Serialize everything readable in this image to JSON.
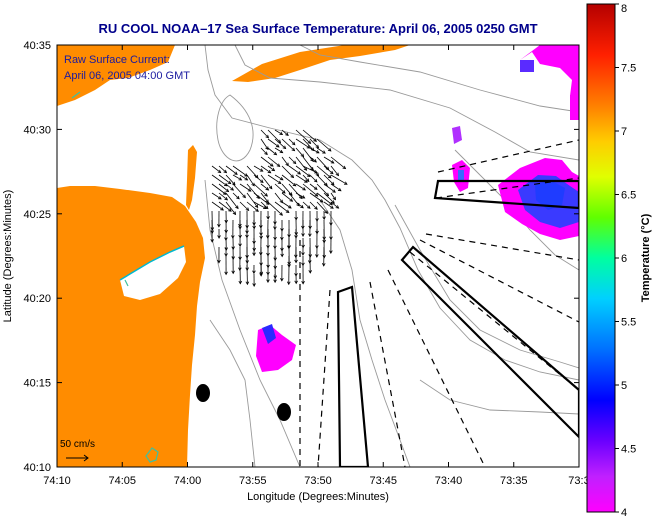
{
  "title": "RU COOL  NOAA–17  Sea Surface Temperature:  April 06, 2005 0250 GMT",
  "overlay": {
    "line1": "Raw Surface Current:",
    "line2": "April 06, 2005 04:00 GMT"
  },
  "x_axis": {
    "label": "Longitude (Degrees:Minutes)",
    "ticks": [
      "74:10",
      "74:05",
      "74:00",
      "73:55",
      "73:50",
      "73:45",
      "73:40",
      "73:35",
      "73:3"
    ]
  },
  "y_axis": {
    "label": "Latitude (Degrees:Minutes)",
    "ticks": [
      "40:35",
      "40:30",
      "40:25",
      "40:20",
      "40:15",
      "40:10"
    ]
  },
  "colorbar": {
    "label": "Temperature (°C)",
    "ticks": [
      "8",
      "7.5",
      "7",
      "6.5",
      "6",
      "5.5",
      "5",
      "4.5",
      "4"
    ],
    "range": [
      4,
      8
    ]
  },
  "vector_legend": {
    "label": "50 cm/s"
  },
  "colors": {
    "land": "#ff8c00",
    "title": "#00008b",
    "overlay_text": "#1a1aa0",
    "contours": "#a0a0a0",
    "vectors": "#000000"
  }
}
